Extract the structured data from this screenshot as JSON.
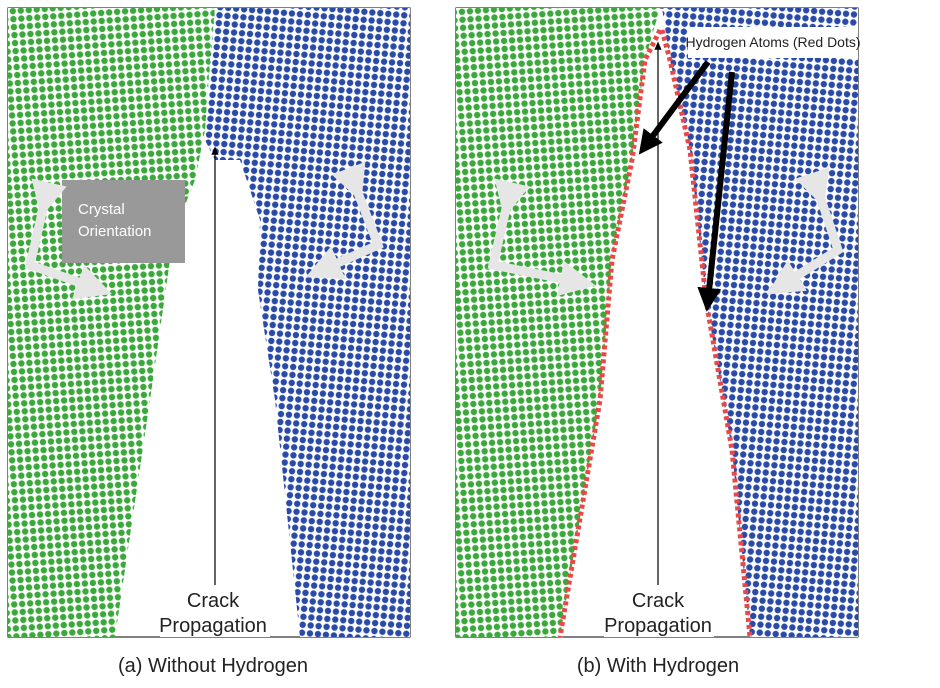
{
  "panels": [
    {
      "caption": "(a) Without Hydrogen",
      "crack_label": [
        "Crack",
        "Propagation"
      ],
      "orientation_label": [
        "Crystal",
        "Orientation"
      ]
    },
    {
      "caption": "(b) With Hydrogen",
      "crack_label": [
        "Crack",
        "Propagation"
      ],
      "hydrogen_label": "Hydrogen Atoms (Red Dots)"
    }
  ]
}
